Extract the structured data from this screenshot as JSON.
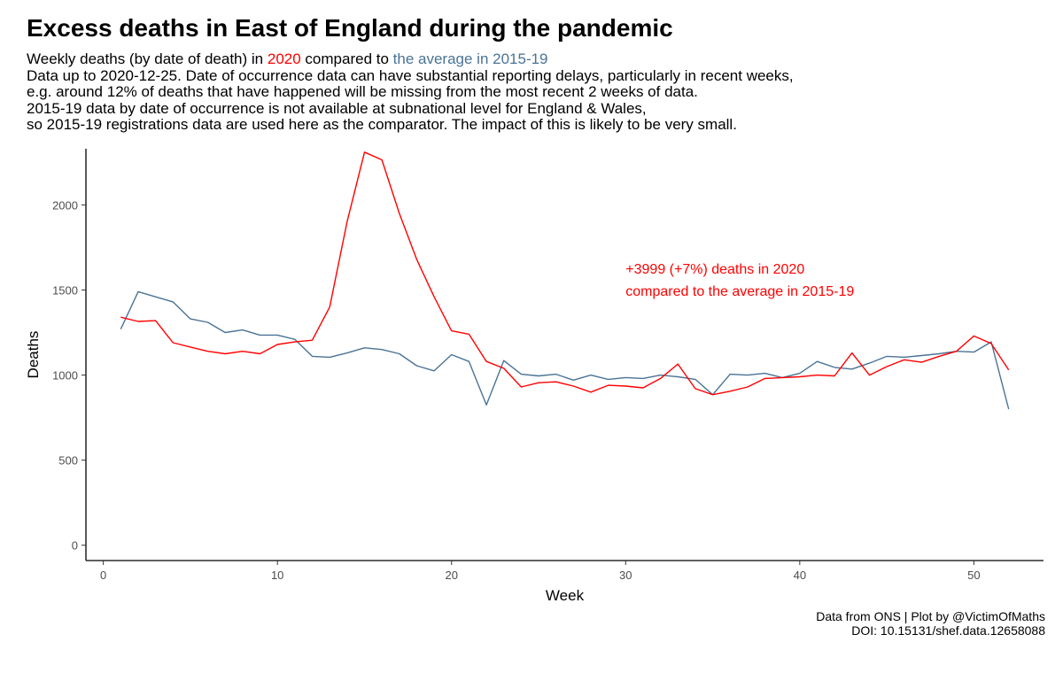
{
  "header": {
    "title": "Excess deaths in East of England during the pandemic",
    "subtitle_prefix": "Weekly deaths (by date of death) in",
    "subtitle_2020": "2020",
    "subtitle_mid": "compared to",
    "subtitle_avg": "the average in 2015-19",
    "note_lines": [
      "Data up to 2020-12-25. Date of occurrence data can have substantial reporting delays, particularly in recent weeks,",
      "e.g. around 12% of deaths that have happened will be missing from the most recent 2 weeks of data.",
      "2015-19 data by date of occurrence is not available at subnational level for England & Wales,",
      "so 2015-19 registrations data are used here as the comparator. The impact of this is likely to be very small."
    ]
  },
  "caption": {
    "line1": "Data from ONS | Plot by @VictimOfMaths",
    "line2": "DOI: 10.15131/shef.data.12658088"
  },
  "colors": {
    "y2020": "#ff0000",
    "avg": "#4a7396"
  },
  "chart_data": {
    "type": "line",
    "title": "Excess deaths in East of England during the pandemic",
    "xlabel": "Week",
    "ylabel": "Deaths",
    "xlim": [
      -1,
      54
    ],
    "ylim": [
      -90,
      2330
    ],
    "xticks": [
      0,
      10,
      20,
      30,
      40,
      50
    ],
    "yticks": [
      0,
      500,
      1000,
      1500,
      2000
    ],
    "grid": false,
    "annotation": {
      "line1": "+3999 (+7%) deaths in 2020",
      "line2": "compared to the average in 2015-19",
      "x": 30,
      "y1": 1595,
      "y2": 1465
    },
    "x": [
      1,
      2,
      3,
      4,
      5,
      6,
      7,
      8,
      9,
      10,
      11,
      12,
      13,
      14,
      15,
      16,
      17,
      18,
      19,
      20,
      21,
      22,
      23,
      24,
      25,
      26,
      27,
      28,
      29,
      30,
      31,
      32,
      33,
      34,
      35,
      36,
      37,
      38,
      39,
      40,
      41,
      42,
      43,
      44,
      45,
      46,
      47,
      48,
      49,
      50,
      51,
      52
    ],
    "series": [
      {
        "name": "2020",
        "color": "#ff0000",
        "values": [
          1340,
          1315,
          1320,
          1190,
          1165,
          1140,
          1125,
          1140,
          1125,
          1180,
          1195,
          1205,
          1400,
          1900,
          2310,
          2265,
          1950,
          1680,
          1460,
          1260,
          1240,
          1080,
          1040,
          930,
          955,
          960,
          935,
          900,
          940,
          935,
          925,
          980,
          1065,
          920,
          885,
          905,
          930,
          980,
          985,
          990,
          1000,
          995,
          1130,
          1000,
          1050,
          1090,
          1075,
          1110,
          1140,
          1230,
          1185,
          1030
        ]
      },
      {
        "name": "the average in 2015-19",
        "color": "#4a7396",
        "values": [
          1270,
          1490,
          1460,
          1430,
          1330,
          1310,
          1250,
          1265,
          1235,
          1235,
          1210,
          1110,
          1105,
          1130,
          1160,
          1150,
          1125,
          1055,
          1025,
          1120,
          1080,
          825,
          1085,
          1005,
          995,
          1005,
          970,
          1000,
          975,
          985,
          980,
          1000,
          990,
          975,
          885,
          1005,
          1000,
          1010,
          985,
          1010,
          1080,
          1045,
          1035,
          1070,
          1110,
          1105,
          1115,
          1125,
          1140,
          1135,
          1195,
          800
        ]
      }
    ]
  }
}
